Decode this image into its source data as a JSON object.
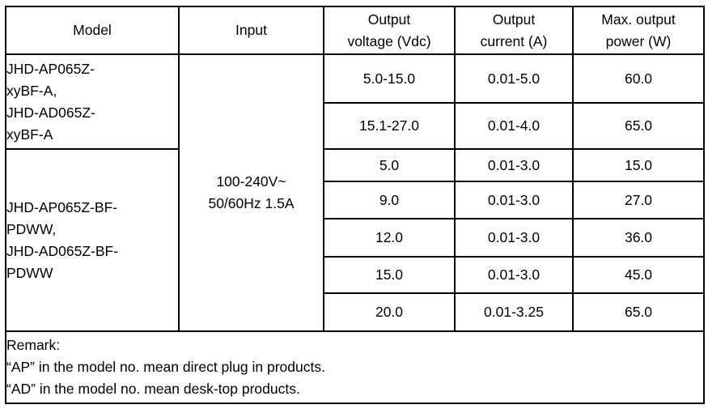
{
  "header": {
    "model": "Model",
    "input": "Input",
    "voltage_lines": [
      "Output",
      "voltage (Vdc)"
    ],
    "current_lines": [
      "Output",
      "current (A)"
    ],
    "power_lines": [
      "Max. output",
      "power (W)"
    ]
  },
  "input_lines": [
    "100-240V~",
    "50/60Hz 1.5A"
  ],
  "groups": [
    {
      "model_lines": [
        "JHD-AP065Z-",
        "xyBF-A,",
        "JHD-AD065Z-",
        "xyBF-A"
      ],
      "rows": [
        [
          "5.0-15.0",
          "0.01-5.0",
          "60.0"
        ],
        [
          "15.1-27.0",
          "0.01-4.0",
          "65.0"
        ]
      ]
    },
    {
      "model_lines": [
        "JHD-AP065Z-BF-",
        "PDWW,",
        "JHD-AD065Z-BF-",
        "PDWW"
      ],
      "rows": [
        [
          "5.0",
          "0.01-3.0",
          "15.0"
        ],
        [
          "9.0",
          "0.01-3.0",
          "27.0"
        ],
        [
          "12.0",
          "0.01-3.0",
          "36.0"
        ],
        [
          "15.0",
          "0.01-3.0",
          "45.0"
        ],
        [
          "20.0",
          "0.01-3.25",
          "65.0"
        ]
      ]
    }
  ],
  "remark_lines": [
    "Remark:",
    "“AP” in the model no. mean direct plug in products.",
    "“AD” in the model no. mean desk-top products."
  ],
  "colors": {
    "border": "#000000",
    "text": "#000000",
    "background": "#ffffff"
  }
}
